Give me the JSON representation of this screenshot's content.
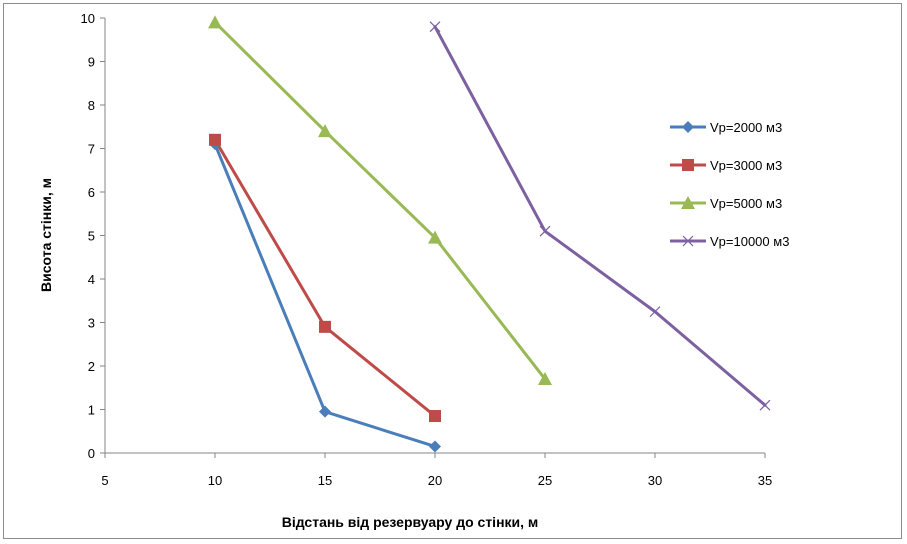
{
  "chart_data": {
    "type": "line",
    "title": "",
    "xlabel": "Відстань від резервуару до стінки, м",
    "ylabel": "Висота стінки, м",
    "xlim": [
      5,
      35
    ],
    "ylim": [
      0,
      10
    ],
    "x_ticks": [
      5,
      10,
      15,
      20,
      25,
      30,
      35
    ],
    "y_ticks": [
      0,
      1,
      2,
      3,
      4,
      5,
      6,
      7,
      8,
      9,
      10
    ],
    "grid": false,
    "legend_position": "right",
    "series": [
      {
        "name": "Vр=2000 м3",
        "color": "#4a7ebb",
        "marker": "diamond",
        "x": [
          10,
          15,
          20
        ],
        "y": [
          7.1,
          0.95,
          0.15
        ]
      },
      {
        "name": "Vр=3000 м3",
        "color": "#be4b48",
        "marker": "square",
        "x": [
          10,
          15,
          20
        ],
        "y": [
          7.2,
          2.9,
          0.85
        ]
      },
      {
        "name": "Vр=5000 м3",
        "color": "#98b954",
        "marker": "triangle",
        "x": [
          10,
          15,
          20,
          25
        ],
        "y": [
          9.9,
          7.4,
          4.95,
          1.7
        ]
      },
      {
        "name": "Vр=10000 м3",
        "color": "#7d60a0",
        "marker": "x",
        "x": [
          20,
          25,
          30,
          35
        ],
        "y": [
          9.8,
          5.1,
          3.25,
          1.1
        ]
      }
    ]
  }
}
